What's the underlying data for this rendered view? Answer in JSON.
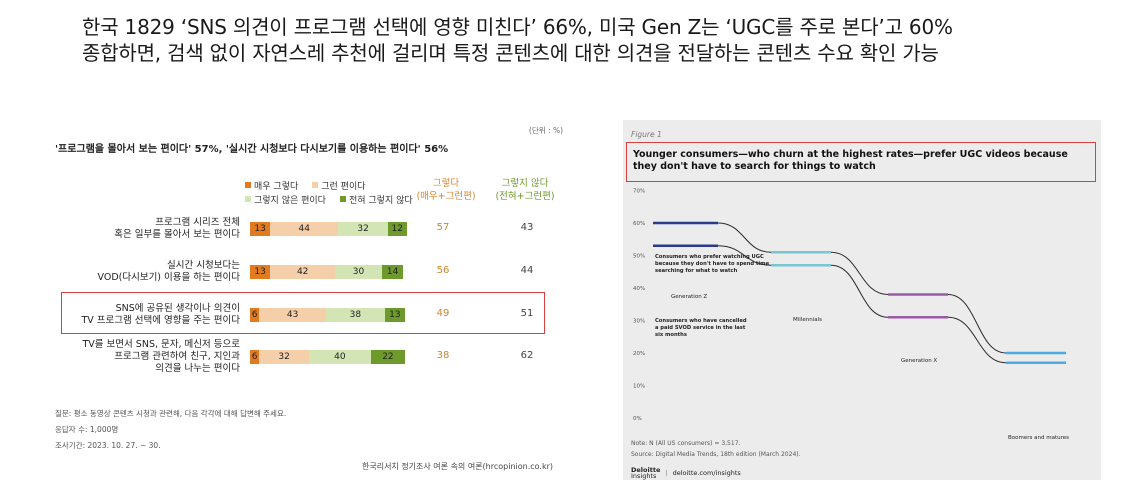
{
  "headline": {
    "line1": "한국 1829 ‘SNS 의견이 프로그램 선택에 영향 미친다’ 66%, 미국 Gen Z는 ‘UGC를 주로 본다’고 60%",
    "line2": "종합하면, 검색 없이 자연스레 추천에 걸리며 특정 콘텐츠에 대한 의견을 전달하는 콘텐츠 수요 확인 가능"
  },
  "colors": {
    "very": "#e07b20",
    "some": "#f5cfaa",
    "notmuch": "#d4e5b5",
    "never": "#6e9a2c",
    "highlight": "#d84040",
    "genz": "#2b3a8c",
    "millennials": "#78c6d0",
    "genx": "#9b5aa8",
    "boomers": "#4fa9e0"
  },
  "left_chart": {
    "unit": "(단위 : %)",
    "subtitle": "'프로그램을 몰아서 보는 편이다' 57%, '실시간 시청보다 다시보기를 이용하는 편이다' 56%",
    "legend": {
      "very": "매우 그렇다",
      "some": "그런 편이다",
      "notmuch": "그렇지 않은 편이다",
      "never": "전혀 그렇지 않다"
    },
    "col_agree": {
      "line1": "그렇다",
      "line2": "(매우+그런편)"
    },
    "col_disagree": {
      "line1": "그렇지 않다",
      "line2": "(전혀+그런편)"
    },
    "notes": {
      "q": "질문: 평소 동영상 콘텐츠 시청과 관련해, 다음 각각에 대해 답변해 주세요.",
      "n": "응답자 수: 1,000명",
      "period": "조사기간: 2023. 10. 27. ~ 30."
    },
    "source": "한국리서치 정기조사 여론 속의 여론(hrcopinion.co.kr)"
  },
  "chart_data": [
    {
      "type": "bar",
      "stacked": true,
      "categories": [
        "프로그램 시리즈 전체 혹은 일부를 몰아서 보는 편이다",
        "실시간 시청보다는 VOD(다시보기) 이용을 하는 편이다",
        "SNS에 공유된 생각이나 의견이 TV 프로그램 선택에 영향을 주는 편이다",
        "TV를 보면서 SNS, 문자, 메신저 등으로 프로그램 관련하여 친구, 지인과 의견을 나누는 편이다"
      ],
      "category_lines": [
        [
          "프로그램 시리즈 전체",
          "혹은 일부를 몰아서 보는 편이다"
        ],
        [
          "실시간 시청보다는",
          "VOD(다시보기) 이용을 하는 편이다"
        ],
        [
          "SNS에 공유된 생각이나 의견이",
          "TV 프로그램 선택에 영향을 주는 편이다"
        ],
        [
          "TV를 보면서 SNS, 문자, 메신저 등으로",
          "프로그램 관련하여 친구, 지인과",
          "의견을 나누는 편이다"
        ]
      ],
      "series": [
        {
          "name": "매우 그렇다",
          "values": [
            13,
            13,
            6,
            6
          ]
        },
        {
          "name": "그런 편이다",
          "values": [
            44,
            42,
            43,
            32
          ]
        },
        {
          "name": "그렇지 않은 편이다",
          "values": [
            32,
            30,
            38,
            40
          ]
        },
        {
          "name": "전혀 그렇지 않다",
          "values": [
            12,
            14,
            13,
            22
          ]
        }
      ],
      "agree_totals": [
        57,
        56,
        49,
        38
      ],
      "disagree_totals": [
        43,
        44,
        51,
        62
      ],
      "highlighted_category_index": 2
    },
    {
      "type": "line",
      "figure_label": "Figure 1",
      "title": "Younger consumers—who churn at the highest rates—prefer UGC videos because they don't have to search for things to watch",
      "y_ticks": [
        "70%",
        "60%",
        "50%",
        "40%",
        "30%",
        "20%",
        "10%",
        "0%"
      ],
      "ylim": [
        0,
        70
      ],
      "categories": [
        "Generation Z",
        "Millennials",
        "Generation X",
        "Boomers and matures"
      ],
      "series": [
        {
          "name": "Consumers who prefer watching UGC because they don't have to spend time searching for what to watch",
          "values": [
            60,
            51,
            38,
            20
          ]
        },
        {
          "name": "Consumers who have cancelled a paid SVOD service in the last six months",
          "values": [
            53,
            47,
            31,
            17
          ]
        }
      ],
      "series_labels": [
        [
          "Consumers who prefer watching UGC",
          "because they don't have to spend time",
          "searching for what to watch"
        ],
        [
          "Consumers who have cancelled",
          "a paid SVOD service in the last",
          "six months"
        ]
      ],
      "note": "Note: N (All US consumers) = 3,517.",
      "source": "Source: Digital Media Trends, 18th edition (March 2024).",
      "logo": {
        "name": "Deloitte Insights",
        "line1": "Deloitte",
        "line2": "Insights",
        "site": "deloitte.com/insights"
      }
    }
  ]
}
